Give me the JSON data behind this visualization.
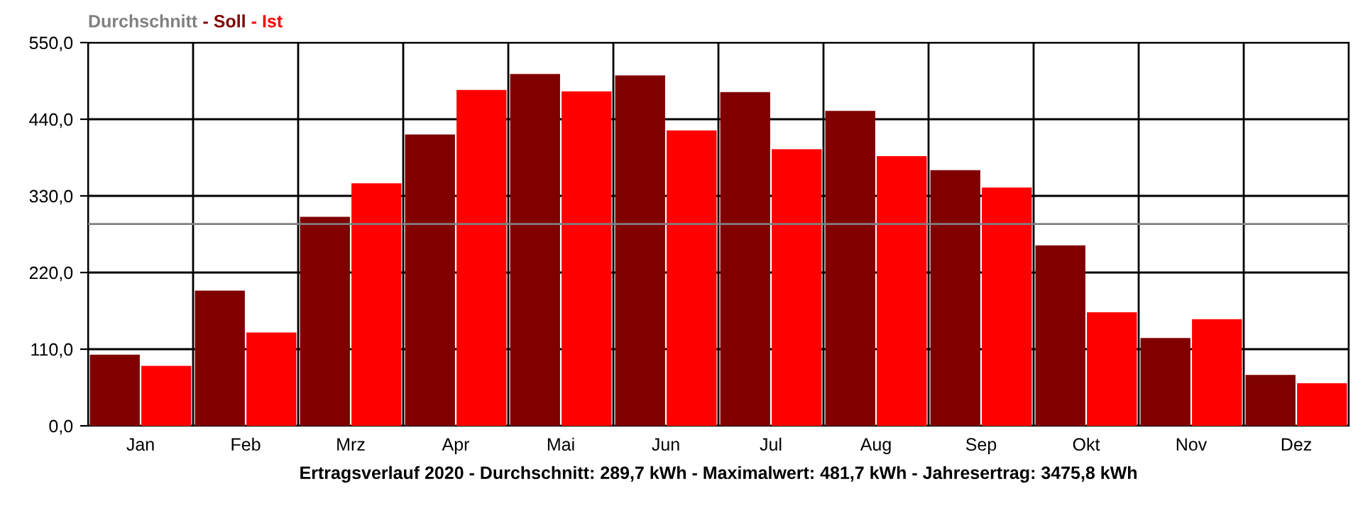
{
  "chart_data": {
    "type": "bar",
    "xlabel": "Ertragsverlauf 2020 - Durchschnitt: 289,7 kWh - Maximalwert: 481,7 kWh - Jahresertrag: 3475,8 kWh",
    "categories": [
      "Jan",
      "Feb",
      "Mrz",
      "Apr",
      "Mai",
      "Jun",
      "Jul",
      "Aug",
      "Sep",
      "Okt",
      "Nov",
      "Dez"
    ],
    "series": [
      {
        "name": "Soll",
        "color": "#800000",
        "values": [
          102,
          194,
          300,
          418,
          505,
          503,
          479,
          452,
          367,
          259,
          126,
          73
        ]
      },
      {
        "name": "Ist",
        "color": "#ff0000",
        "values": [
          86,
          134,
          348,
          482,
          480,
          424,
          397,
          387,
          342,
          163,
          153,
          61
        ]
      }
    ],
    "ylim": [
      0,
      550
    ],
    "yticks": [
      {
        "value": 0,
        "label": "0,0"
      },
      {
        "value": 110,
        "label": "110,0"
      },
      {
        "value": 220,
        "label": "220,0"
      },
      {
        "value": 330,
        "label": "330,0"
      },
      {
        "value": 440,
        "label": "440,0"
      },
      {
        "value": 550,
        "label": "550,0"
      }
    ],
    "ref_lines": [
      {
        "axis": "y",
        "value": 289.7,
        "label": "Durchschnitt",
        "color": "#808080"
      }
    ],
    "annotations": [
      "-",
      "-"
    ],
    "grid": true,
    "legend": "top left"
  }
}
